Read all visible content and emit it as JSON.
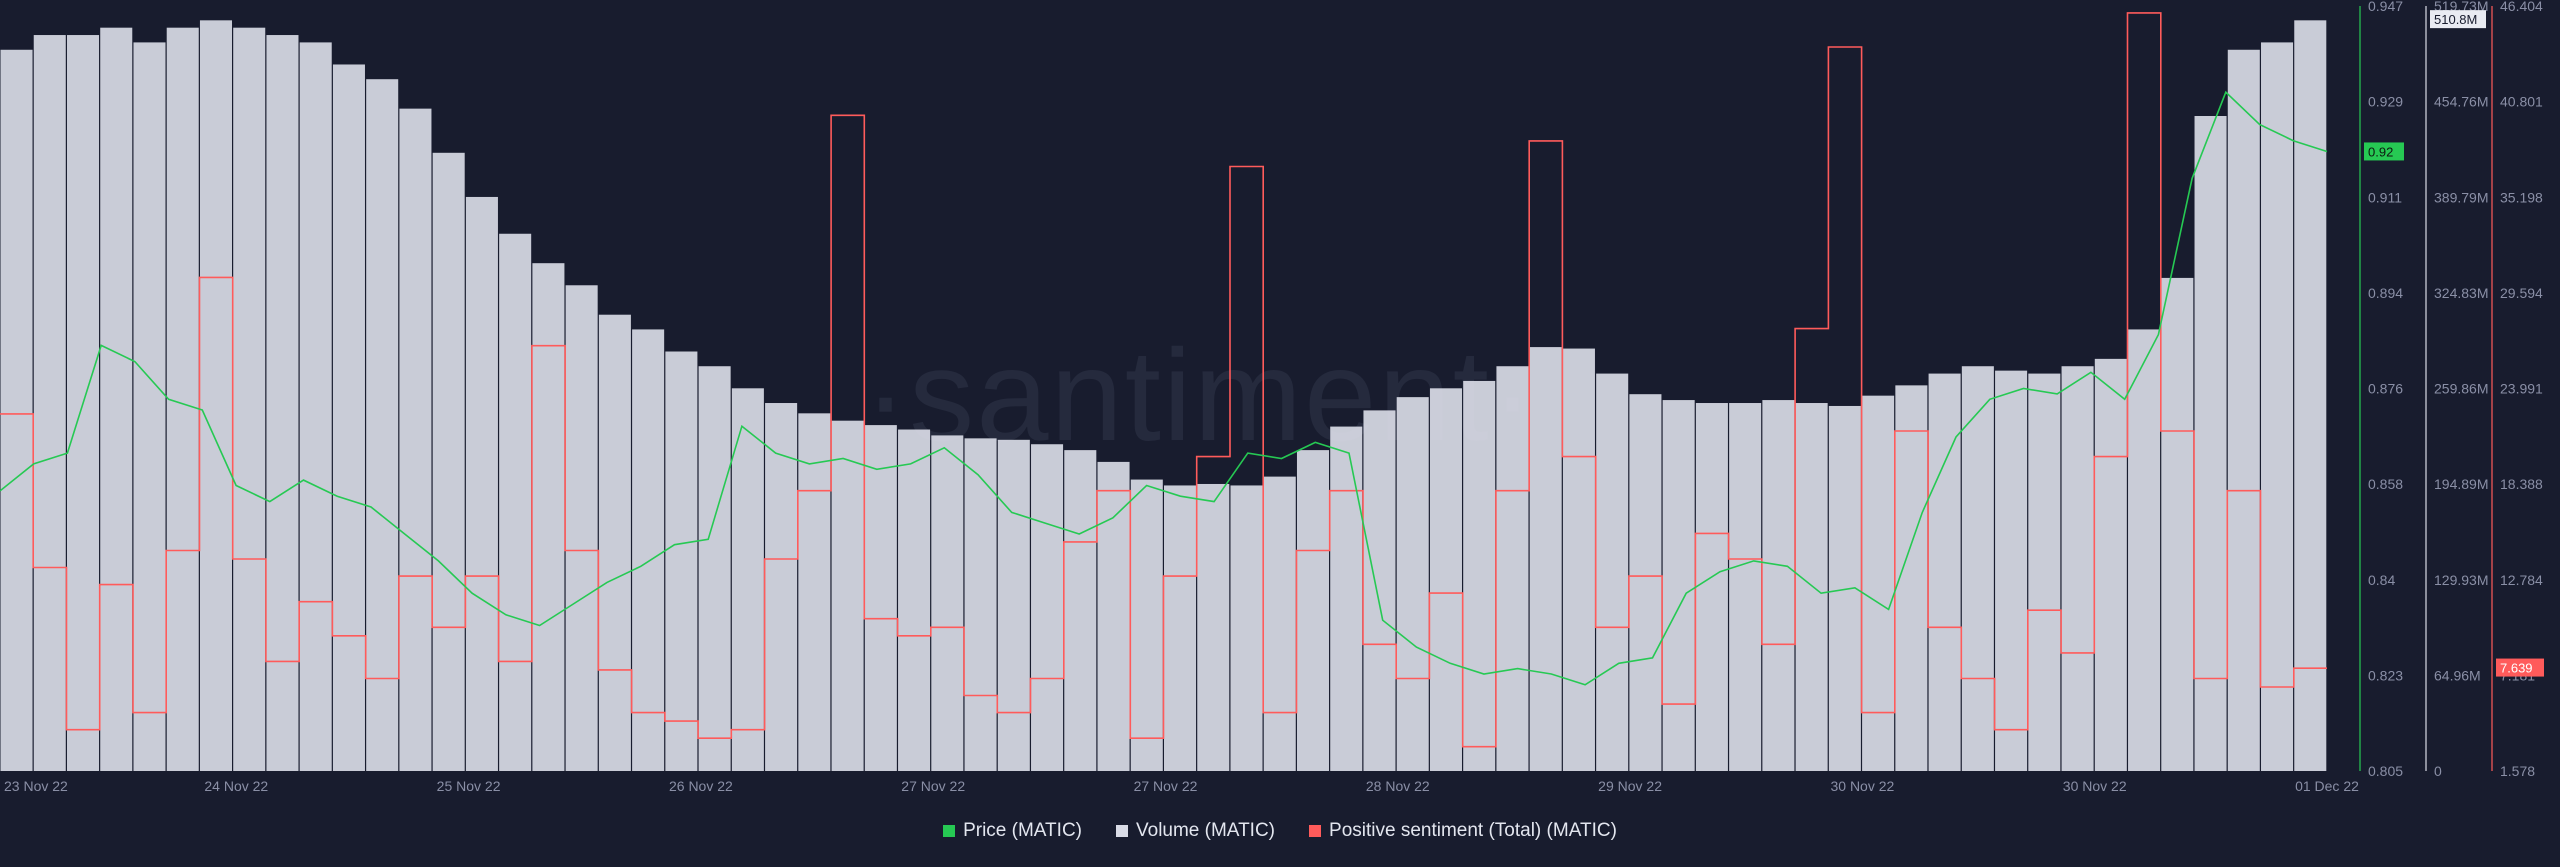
{
  "watermark": "·santiment·",
  "colors": {
    "price": "#26c953",
    "volume": "#d9dbe6",
    "sentiment": "#ff5b5b",
    "background": "#181c2e"
  },
  "chart_data": {
    "type": "bar",
    "x_labels": [
      "23 Nov 22",
      "24 Nov 22",
      "25 Nov 22",
      "26 Nov 22",
      "27 Nov 22",
      "27 Nov 22",
      "28 Nov 22",
      "29 Nov 22",
      "30 Nov 22",
      "30 Nov 22",
      "01 Dec 22"
    ],
    "axes": {
      "price": {
        "ticks": [
          "0.947",
          "0.929",
          "0.911",
          "0.894",
          "0.876",
          "0.858",
          "0.84",
          "0.823",
          "0.805"
        ],
        "range": [
          0.805,
          0.947
        ],
        "current": "0.92"
      },
      "volume": {
        "ticks": [
          "519.73M",
          "454.76M",
          "389.79M",
          "324.83M",
          "259.86M",
          "194.89M",
          "129.93M",
          "64.96M",
          "0"
        ],
        "range": [
          0,
          519.73
        ],
        "unit": "M",
        "current": "510.8M"
      },
      "sentiment": {
        "ticks": [
          "46.404",
          "40.801",
          "35.198",
          "29.594",
          "23.991",
          "18.388",
          "12.784",
          "7.181",
          "1.578"
        ],
        "range": [
          1.578,
          46.404
        ],
        "current": "7.639"
      }
    },
    "series": [
      {
        "name": "Price (MATIC)",
        "type": "line",
        "axis": "price",
        "values": [
          0.857,
          0.862,
          0.864,
          0.884,
          0.881,
          0.874,
          0.872,
          0.858,
          0.855,
          0.859,
          0.856,
          0.854,
          0.849,
          0.844,
          0.838,
          0.834,
          0.832,
          0.836,
          0.84,
          0.843,
          0.847,
          0.848,
          0.869,
          0.864,
          0.862,
          0.863,
          0.861,
          0.862,
          0.865,
          0.86,
          0.853,
          0.851,
          0.849,
          0.852,
          0.858,
          0.856,
          0.855,
          0.864,
          0.863,
          0.866,
          0.864,
          0.833,
          0.828,
          0.825,
          0.823,
          0.824,
          0.823,
          0.821,
          0.825,
          0.826,
          0.838,
          0.842,
          0.844,
          0.843,
          0.838,
          0.839,
          0.835,
          0.853,
          0.867,
          0.874,
          0.876,
          0.875,
          0.879,
          0.874,
          0.886,
          0.915,
          0.931,
          0.925,
          0.922,
          0.92
        ]
      },
      {
        "name": "Volume (MATIC)",
        "type": "bar",
        "axis": "volume",
        "unit": "M",
        "values": [
          490,
          500,
          500,
          505,
          495,
          505,
          510,
          505,
          500,
          495,
          480,
          470,
          450,
          420,
          390,
          365,
          345,
          330,
          310,
          300,
          285,
          275,
          260,
          250,
          243,
          238,
          235,
          232,
          228,
          226,
          225,
          222,
          218,
          210,
          198,
          194,
          195,
          194,
          200,
          218,
          234,
          245,
          254,
          260,
          265,
          275,
          288,
          287,
          270,
          256,
          252,
          250,
          250,
          252,
          250,
          248,
          255,
          262,
          270,
          275,
          272,
          270,
          275,
          280,
          300,
          335,
          445,
          490,
          495,
          510
        ]
      },
      {
        "name": "Positive sentiment (Total) (MATIC)",
        "type": "line",
        "axis": "sentiment",
        "values": [
          22.5,
          13.5,
          4.0,
          12.5,
          5.0,
          14.5,
          30.5,
          14.0,
          8.0,
          11.5,
          9.5,
          7.0,
          13.0,
          10.0,
          13.0,
          8.0,
          26.5,
          14.5,
          7.5,
          5.0,
          4.5,
          3.5,
          4.0,
          14.0,
          18.0,
          40.0,
          10.5,
          9.5,
          10.0,
          6.0,
          5.0,
          7.0,
          15.0,
          18.0,
          3.5,
          13.0,
          20.0,
          37.0,
          5.0,
          14.5,
          18.0,
          9.0,
          7.0,
          12.0,
          3.0,
          18.0,
          38.5,
          20.0,
          10.0,
          13.0,
          5.5,
          15.5,
          14.0,
          9.0,
          27.5,
          44.0,
          5.0,
          21.5,
          10.0,
          7.0,
          4.0,
          11.0,
          8.5,
          20.0,
          46.0,
          21.5,
          7.0,
          18.0,
          6.5,
          7.6
        ]
      }
    ],
    "legend": {
      "position": "bottom-center",
      "entries": [
        "Price (MATIC)",
        "Volume (MATIC)",
        "Positive sentiment (Total) (MATIC)"
      ]
    },
    "grid": false
  }
}
